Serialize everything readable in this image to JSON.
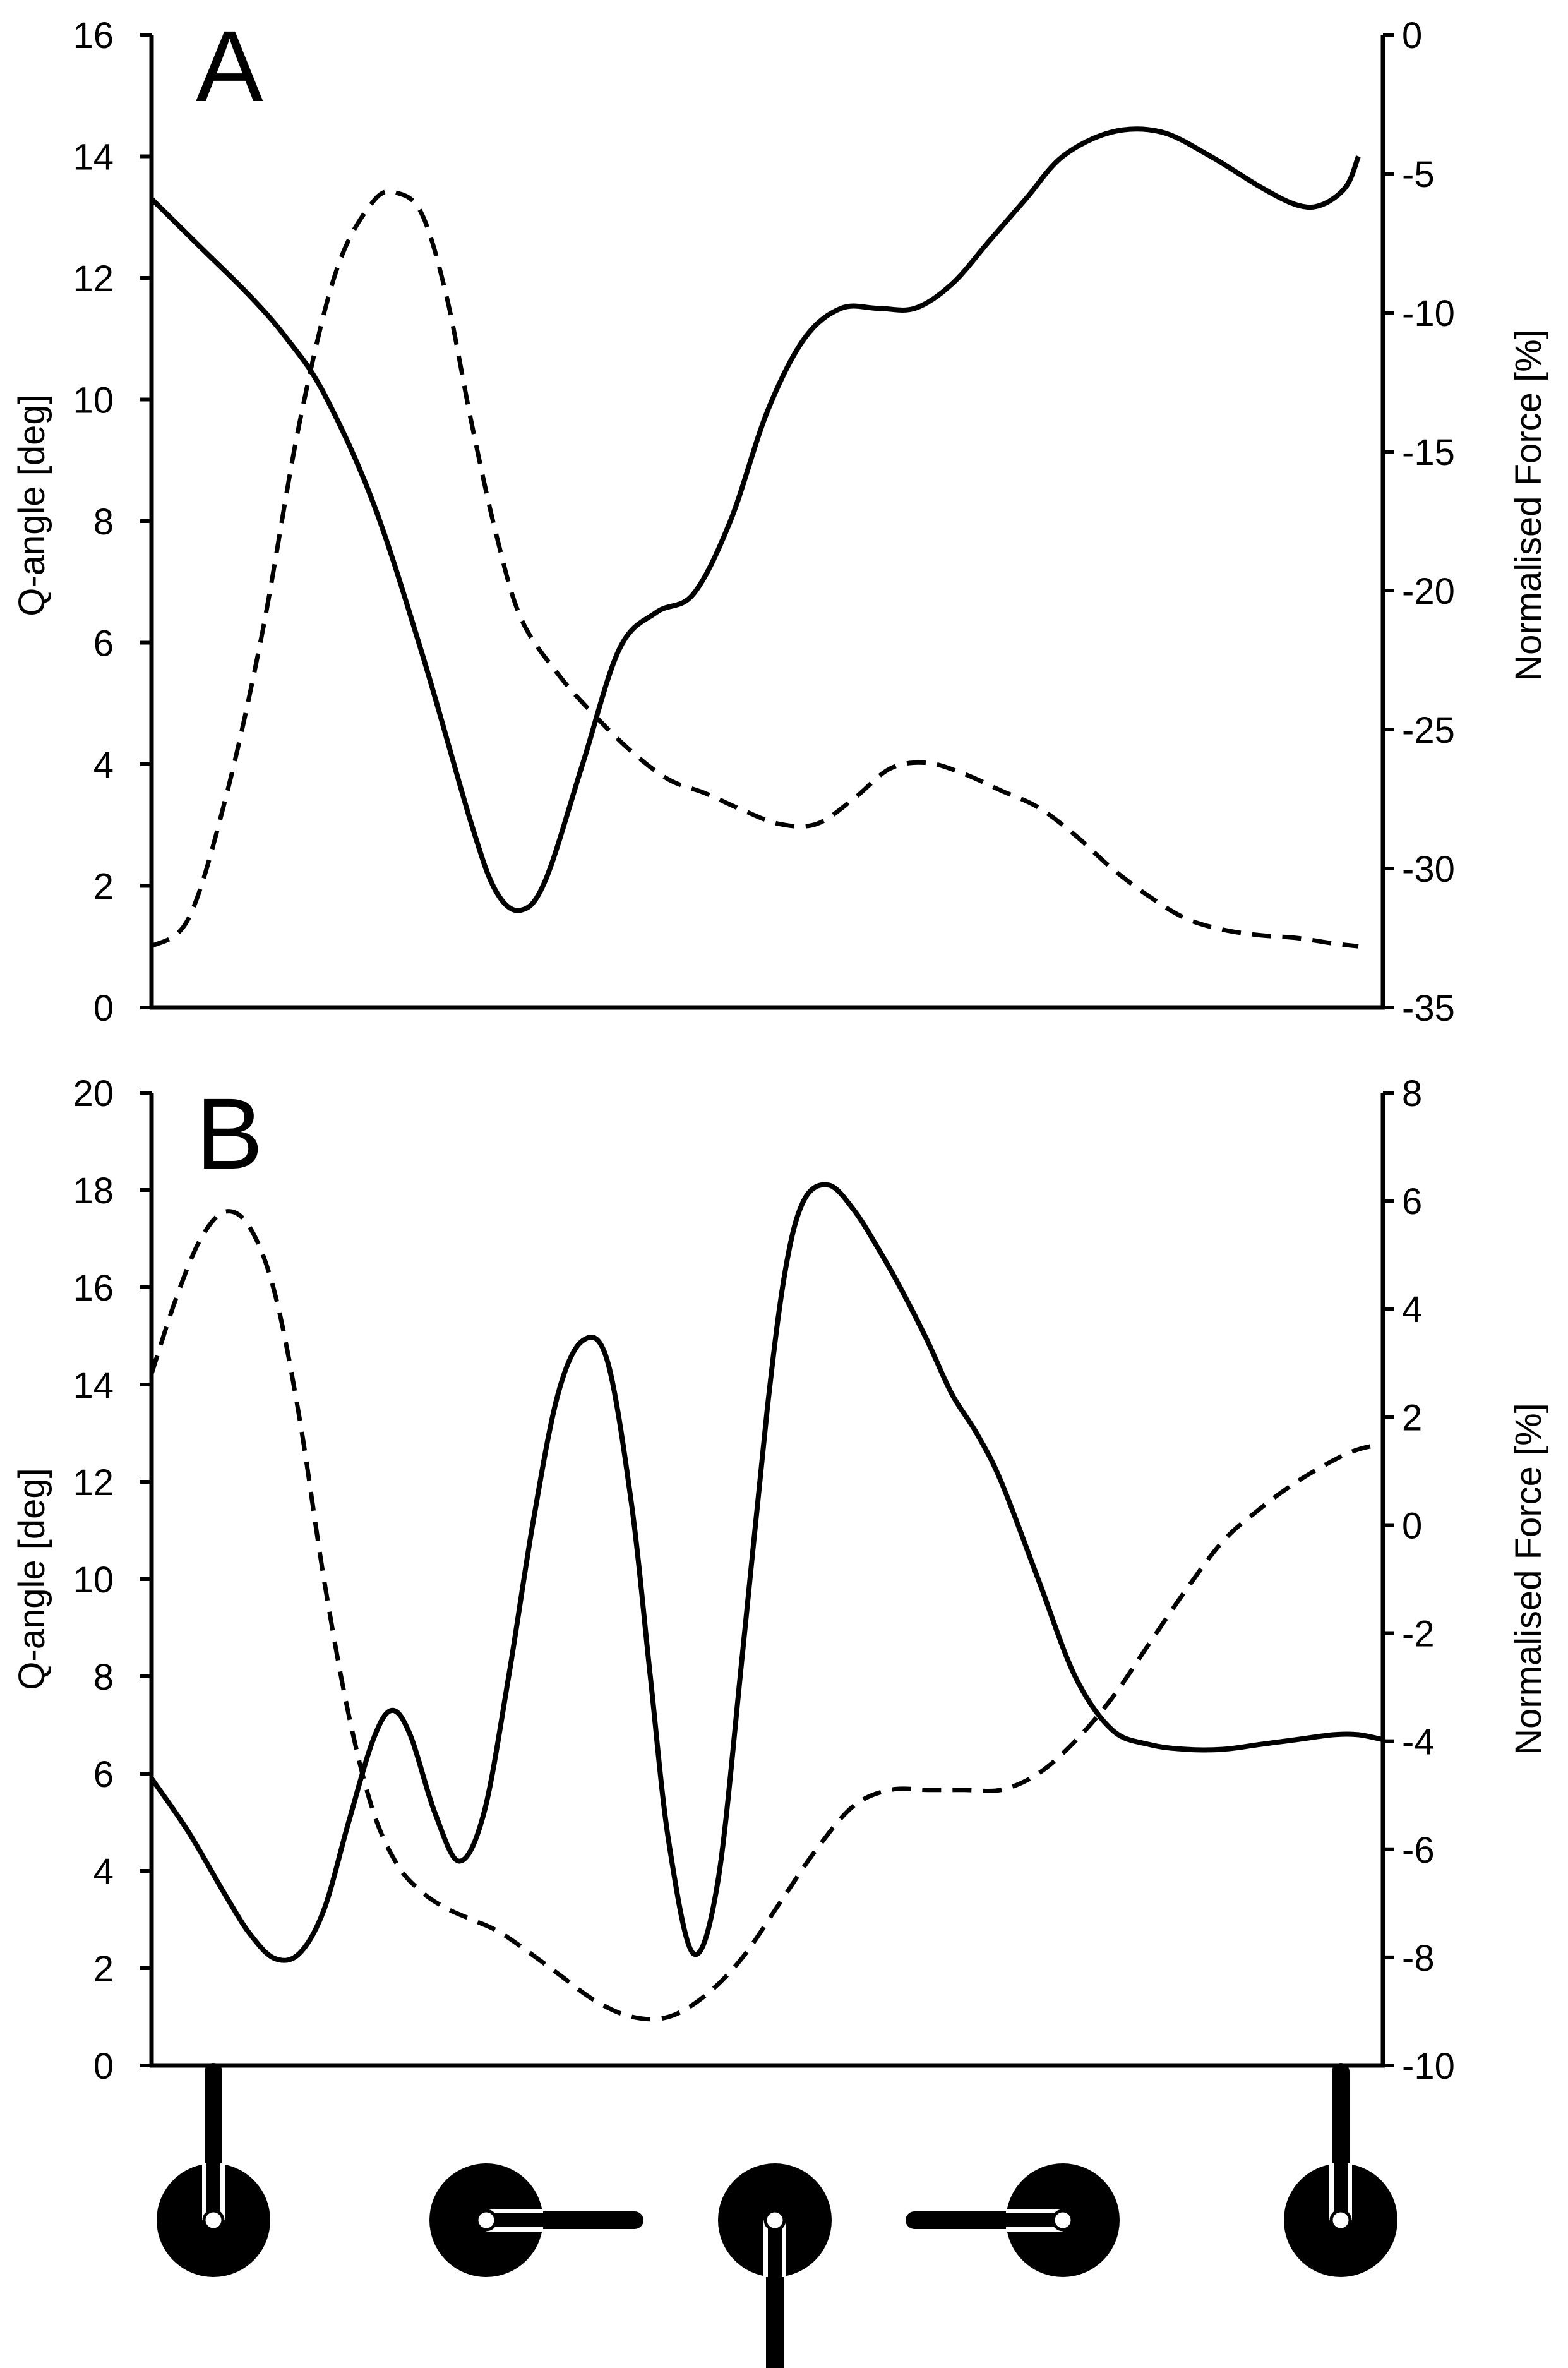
{
  "figure": {
    "description_colors": {
      "line": "#000000",
      "background": "#ffffff"
    }
  },
  "chart_data": [
    {
      "type": "line",
      "panel_label": "A",
      "xlim": [
        0,
        100
      ],
      "left_axis": {
        "label": "Q-angle [deg]",
        "ylim": [
          0,
          16
        ],
        "ticks": [
          "0",
          "2",
          "4",
          "6",
          "8",
          "10",
          "12",
          "14",
          "16"
        ]
      },
      "right_axis": {
        "label": "Normalised Force [%]",
        "ylim": [
          -35,
          0
        ],
        "ticks": [
          "-35",
          "-30",
          "-25",
          "-20",
          "-15",
          "-10",
          "-5",
          "0"
        ]
      },
      "series": [
        {
          "name": "Q-angle",
          "axis": "left",
          "style": "solid",
          "x": [
            0,
            4,
            8,
            11,
            14,
            18,
            22,
            26,
            28,
            30,
            32,
            35,
            38,
            41,
            44,
            47,
            50,
            53,
            56,
            59,
            62,
            65,
            68,
            71,
            74,
            78,
            82,
            86,
            90,
            93,
            95,
            97,
            98
          ],
          "y": [
            13.3,
            12.5,
            11.7,
            11.0,
            10.1,
            8.3,
            5.8,
            3.0,
            1.9,
            1.6,
            2.1,
            4.0,
            5.9,
            6.5,
            6.8,
            8.0,
            9.8,
            11.0,
            11.5,
            11.5,
            11.5,
            11.9,
            12.6,
            13.3,
            14.0,
            14.4,
            14.4,
            14.0,
            13.5,
            13.2,
            13.2,
            13.5,
            14.0
          ]
        },
        {
          "name": "Normalised Force",
          "axis": "right",
          "style": "dashed",
          "x": [
            0,
            3,
            6,
            9,
            12,
            15,
            18,
            20,
            22,
            24,
            26,
            28,
            30,
            33,
            36,
            39,
            42,
            45,
            48,
            51,
            54,
            57,
            60,
            63,
            66,
            69,
            72,
            75,
            78,
            81,
            84,
            87,
            90,
            93,
            96,
            98
          ],
          "y": [
            -32.8,
            -31.8,
            -27.5,
            -21.5,
            -14.0,
            -8.5,
            -6.0,
            -5.7,
            -6.5,
            -9.5,
            -14.0,
            -18.0,
            -21.0,
            -23.0,
            -24.5,
            -25.8,
            -26.8,
            -27.3,
            -27.9,
            -28.4,
            -28.4,
            -27.5,
            -26.4,
            -26.2,
            -26.6,
            -27.2,
            -27.8,
            -28.8,
            -30.0,
            -31.0,
            -31.8,
            -32.2,
            -32.4,
            -32.5,
            -32.7,
            -32.8
          ]
        }
      ]
    },
    {
      "type": "line",
      "panel_label": "B",
      "xlim": [
        0,
        100
      ],
      "left_axis": {
        "label": "Q-angle [deg]",
        "ylim": [
          0,
          20
        ],
        "ticks": [
          "0",
          "2",
          "4",
          "6",
          "8",
          "10",
          "12",
          "14",
          "16",
          "18",
          "20"
        ]
      },
      "right_axis": {
        "label": "Normalised Force [%]",
        "ylim": [
          -10,
          8
        ],
        "ticks": [
          "-10",
          "-8",
          "-6",
          "-4",
          "-2",
          "0",
          "2",
          "4",
          "6",
          "8"
        ]
      },
      "series": [
        {
          "name": "Q-angle",
          "axis": "left",
          "style": "solid",
          "x": [
            0,
            3,
            6,
            8,
            10,
            12,
            14,
            16,
            18,
            19.5,
            21,
            23,
            25,
            27,
            29,
            31,
            33,
            35,
            37,
            39,
            40.5,
            42,
            44,
            46,
            48,
            50,
            51.5,
            53,
            55,
            57,
            59,
            61,
            63,
            65,
            67,
            69,
            72,
            75,
            78,
            81,
            84,
            87,
            90,
            93,
            96,
            98,
            100
          ],
          "y": [
            5.9,
            4.8,
            3.5,
            2.7,
            2.2,
            2.3,
            3.2,
            5.0,
            6.7,
            7.3,
            6.8,
            5.2,
            4.2,
            5.2,
            8.0,
            11.2,
            13.8,
            14.9,
            14.5,
            11.5,
            8.0,
            4.6,
            2.3,
            3.8,
            8.5,
            13.5,
            16.4,
            17.8,
            18.1,
            17.6,
            16.8,
            15.9,
            14.9,
            13.8,
            13.0,
            12.0,
            10.0,
            8.0,
            6.9,
            6.6,
            6.5,
            6.5,
            6.6,
            6.7,
            6.8,
            6.8,
            6.7
          ]
        },
        {
          "name": "Normalised Force",
          "axis": "right",
          "style": "dashed",
          "x": [
            0,
            2,
            4,
            6,
            8,
            10,
            12,
            14,
            16,
            18,
            20,
            22,
            24,
            26,
            28,
            30,
            33,
            36,
            39,
            42,
            45,
            48,
            51,
            54,
            57,
            60,
            63,
            66,
            69,
            72,
            75,
            78,
            81,
            84,
            87,
            90,
            93,
            96,
            98,
            100
          ],
          "y": [
            2.8,
            4.2,
            5.3,
            5.8,
            5.5,
            4.3,
            2.0,
            -1.0,
            -3.5,
            -5.3,
            -6.3,
            -6.8,
            -7.1,
            -7.3,
            -7.5,
            -7.8,
            -8.3,
            -8.8,
            -9.1,
            -9.1,
            -8.7,
            -8.0,
            -7.0,
            -6.0,
            -5.2,
            -4.9,
            -4.9,
            -4.9,
            -4.9,
            -4.6,
            -4.0,
            -3.2,
            -2.2,
            -1.2,
            -0.3,
            0.3,
            0.8,
            1.2,
            1.4,
            1.5
          ]
        }
      ]
    }
  ],
  "crank_positions": [
    {
      "name": "crank-icon-top-dead-centre",
      "direction": "up"
    },
    {
      "name": "crank-icon-forward-horizontal",
      "direction": "right"
    },
    {
      "name": "crank-icon-bottom-dead-centre",
      "direction": "down"
    },
    {
      "name": "crank-icon-backward-horizontal",
      "direction": "left"
    },
    {
      "name": "crank-icon-top-dead-centre-end",
      "direction": "up"
    }
  ]
}
